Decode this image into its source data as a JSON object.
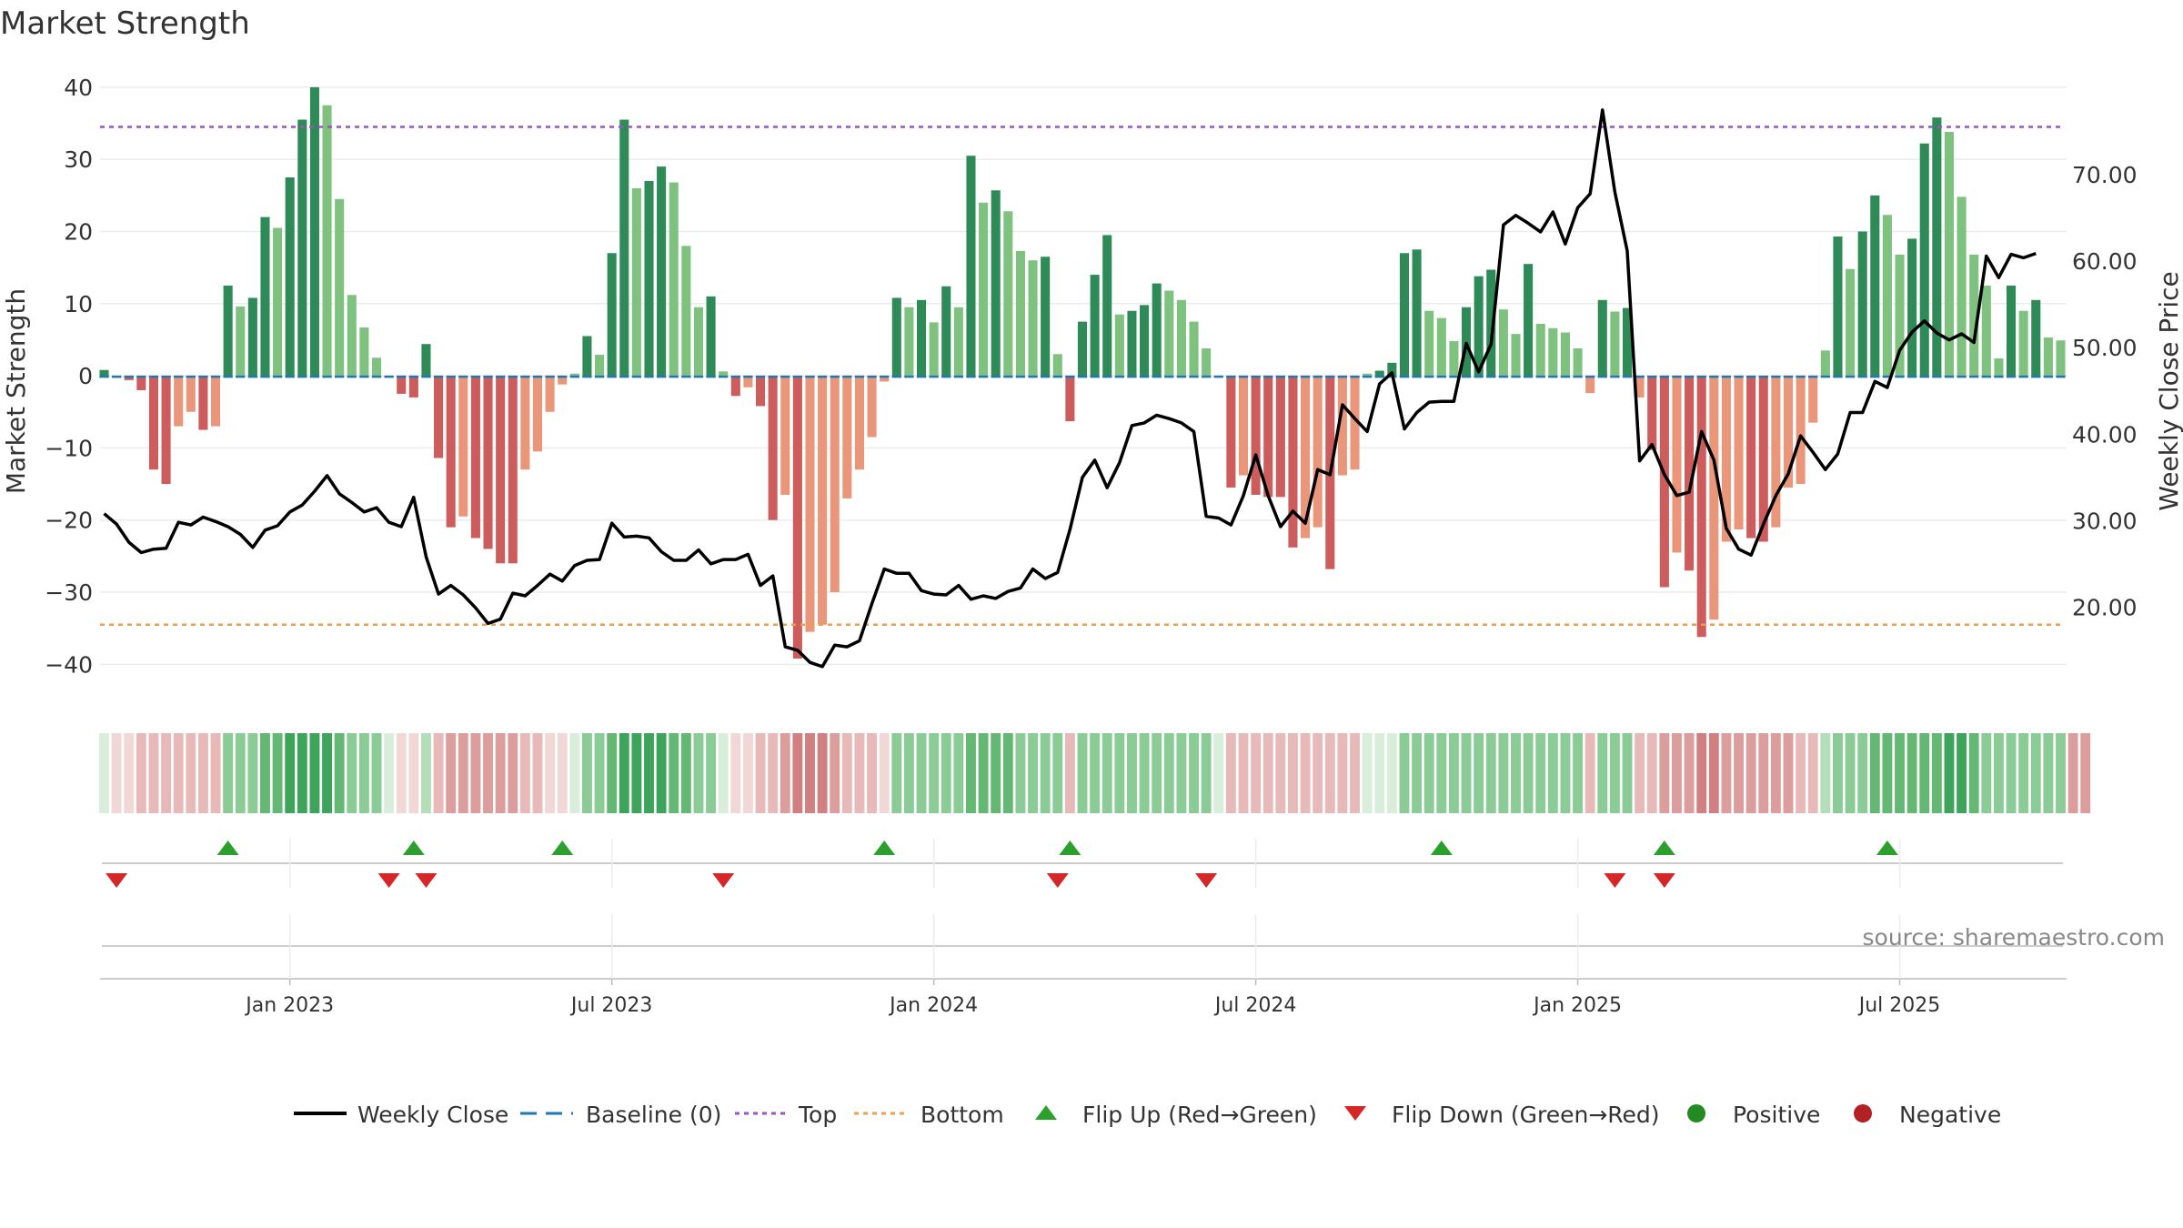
{
  "chart_data": {
    "type": "bar",
    "title": "Market Strength",
    "ylabel": "Market Strength",
    "y2label": "Weekly Close Price",
    "ylim": [
      -45,
      42
    ],
    "y2lim": [
      9.2,
      81.8
    ],
    "y_ticks": [
      40,
      30,
      20,
      10,
      0,
      -10,
      -20,
      -30,
      -40
    ],
    "y_tick_labels": [
      "40",
      "30",
      "20",
      "10",
      "0",
      "−10",
      "−20",
      "−30",
      "−40"
    ],
    "y2_ticks": [
      70,
      60,
      50,
      40,
      30,
      20
    ],
    "y2_tick_labels": [
      "70.00",
      "60.00",
      "50.00",
      "40.00",
      "30.00",
      "20.00"
    ],
    "x_ticks": [
      15,
      41,
      67,
      93,
      119,
      145
    ],
    "x_tick_labels": [
      "Jan 2023",
      "Jul 2023",
      "Jan 2024",
      "Jul 2024",
      "Jan 2025",
      "Jul 2025"
    ],
    "top_line": 34.5,
    "bottom_line": -34.5,
    "baseline": 0,
    "colors": {
      "strong_pos": "#2e8b57",
      "weak_pos": "#7fc17f",
      "strong_neg": "#cd5c5c",
      "weak_neg": "#e9967a",
      "close": "#000000",
      "baseline": "#1f77b4",
      "top": "#9955bb",
      "bottom": "#e8a050",
      "flip_up": "#2ca02c",
      "flip_down": "#d62728",
      "legend_positive": "#228b22",
      "legend_negative": "#b22222"
    },
    "strength": [
      0.8,
      -0.3,
      -0.6,
      -2,
      -13,
      -15,
      -7,
      -5,
      -7.5,
      -7,
      12.5,
      9.6,
      10.8,
      22,
      20.5,
      27.5,
      35.5,
      40,
      37.5,
      24.5,
      11.2,
      6.7,
      2.5,
      0,
      -2.5,
      -3,
      4.4,
      -11.4,
      -21,
      -19.5,
      -22.5,
      -24,
      -26,
      -26,
      -13,
      -10.5,
      -5,
      -1.2,
      0.3,
      5.5,
      2.9,
      17,
      35.5,
      26,
      27,
      29,
      26.8,
      18,
      9.5,
      11,
      0.6,
      -2.8,
      -1.6,
      -4.2,
      -20,
      -16.5,
      -39.2,
      -35.5,
      -34.5,
      -30,
      -17,
      -13,
      -8.5,
      -0.8,
      10.8,
      9.5,
      10.5,
      7.4,
      12.4,
      9.5,
      30.5,
      24,
      25.7,
      22.8,
      17.3,
      16,
      16.5,
      3,
      -6.3,
      7.5,
      14,
      19.5,
      8.5,
      9,
      9.8,
      12.8,
      11.8,
      10.5,
      7.5,
      3.8,
      0,
      -15.5,
      -13.8,
      -16.5,
      -16.8,
      -16.8,
      -23.8,
      -22.5,
      -21,
      -26.8,
      -13.8,
      -13,
      0.3,
      0.7,
      1.8,
      17,
      17.5,
      9,
      8,
      4.8,
      9.5,
      13.8,
      14.7,
      9.2,
      5.8,
      15.5,
      7.2,
      6.6,
      6,
      3.8,
      -2.4,
      10.5,
      8.9,
      9.4,
      -3,
      -10.3,
      -29.3,
      -24.5,
      -27,
      -36.2,
      -33.8,
      -23,
      -21.3,
      -22.5,
      -23,
      -21,
      -15.5,
      -15,
      -6.5,
      3.5,
      19.3,
      14.8,
      20,
      25,
      22.3,
      16.8,
      19,
      32.2,
      35.8,
      33.8,
      24.8,
      16.8,
      12.5,
      2.4,
      12.5,
      9,
      10.5,
      5.3,
      4.9
    ],
    "close": [
      30.8,
      29.6,
      27.5,
      26.3,
      26.7,
      26.8,
      29.8,
      29.5,
      30.4,
      29.9,
      29.3,
      28.4,
      26.9,
      28.9,
      29.4,
      31,
      31.8,
      33.4,
      35.2,
      33.1,
      32.1,
      31,
      31.5,
      29.8,
      29.3,
      32.7,
      25.8,
      21.5,
      22.5,
      21.4,
      19.9,
      18.1,
      18.6,
      21.6,
      21.3,
      22.5,
      23.8,
      23,
      24.8,
      25.4,
      25.5,
      29.7,
      28.1,
      28.2,
      28,
      26.4,
      25.4,
      25.4,
      26.6,
      25,
      25.5,
      25.5,
      26.1,
      22.5,
      23.6,
      15.4,
      15,
      13.6,
      13.1,
      15.6,
      15.4,
      16.1,
      20.4,
      24.4,
      23.9,
      23.9,
      21.9,
      21.5,
      21.4,
      22.5,
      20.9,
      21.3,
      21,
      21.8,
      22.2,
      24.4,
      23.3,
      24,
      29,
      35,
      37,
      33.8,
      36.7,
      41,
      41.3,
      42.2,
      41.8,
      41.3,
      40.3,
      30.5,
      30.3,
      29.5,
      32.9,
      37.6,
      32.9,
      29.3,
      31.1,
      29.7,
      35.9,
      35.3,
      43.4,
      41.8,
      40.3,
      45.8,
      47.1,
      40.6,
      42.5,
      43.7,
      43.8,
      43.8,
      50.5,
      47.2,
      50.4,
      64.2,
      65.3,
      64.4,
      63.4,
      65.7,
      62,
      66.2,
      67.8,
      77.5,
      68,
      61.2,
      36.9,
      38.8,
      35.3,
      32.9,
      33.3,
      40.3,
      37,
      29.1,
      26.7,
      26,
      29.6,
      32.9,
      35.4,
      39.8,
      37.9,
      35.9,
      37.7,
      42.5,
      42.5,
      46.1,
      45.4,
      49.7,
      51.8,
      53.1,
      51.7,
      50.9,
      51.6,
      50.6,
      60.6,
      58.1,
      60.8,
      60.4,
      60.9
    ],
    "strip_levels": [
      1,
      1,
      1,
      2,
      2,
      2,
      2,
      2,
      2,
      2,
      3,
      3,
      3,
      4,
      4,
      5,
      5,
      5,
      5,
      4,
      3,
      3,
      3,
      1,
      1,
      1,
      2,
      2,
      3,
      3,
      3,
      3,
      3,
      3,
      2,
      2,
      1,
      1,
      1,
      3,
      3,
      4,
      5,
      5,
      5,
      5,
      4,
      4,
      3,
      3,
      1,
      1,
      1,
      2,
      2,
      3,
      4,
      4,
      4,
      3,
      2,
      2,
      2,
      1,
      3,
      3,
      3,
      3,
      3,
      3,
      4,
      4,
      4,
      4,
      3,
      3,
      3,
      3,
      2,
      3,
      3,
      3,
      3,
      3,
      3,
      3,
      3,
      3,
      3,
      3,
      1,
      2,
      2,
      2,
      2,
      2,
      2,
      2,
      2,
      2,
      2,
      2,
      1,
      1,
      1,
      3,
      3,
      3,
      3,
      3,
      3,
      3,
      3,
      3,
      3,
      3,
      3,
      3,
      3,
      3,
      2,
      3,
      3,
      3,
      2,
      2,
      3,
      3,
      3,
      4,
      4,
      3,
      3,
      3,
      3,
      3,
      3,
      2,
      2,
      2,
      3,
      3,
      3,
      4,
      4,
      4,
      4,
      4,
      4,
      5,
      5,
      4,
      3,
      3,
      3,
      3,
      3,
      3,
      3,
      3,
      3
    ],
    "strip_signs": [
      1,
      -1,
      -1,
      -1,
      -1,
      -1,
      -1,
      -1,
      -1,
      -1,
      1,
      1,
      1,
      1,
      1,
      1,
      1,
      1,
      1,
      1,
      1,
      1,
      1,
      1,
      -1,
      -1,
      1,
      -1,
      -1,
      -1,
      -1,
      -1,
      -1,
      -1,
      -1,
      -1,
      -1,
      -1,
      1,
      1,
      1,
      1,
      1,
      1,
      1,
      1,
      1,
      1,
      1,
      1,
      1,
      -1,
      -1,
      -1,
      -1,
      -1,
      -1,
      -1,
      -1,
      -1,
      -1,
      -1,
      -1,
      -1,
      1,
      1,
      1,
      1,
      1,
      1,
      1,
      1,
      1,
      1,
      1,
      1,
      1,
      1,
      -1,
      1,
      1,
      1,
      1,
      1,
      1,
      1,
      1,
      1,
      1,
      1,
      1,
      -1,
      -1,
      -1,
      -1,
      -1,
      -1,
      -1,
      -1,
      -1,
      -1,
      -1,
      1,
      1,
      1,
      1,
      1,
      1,
      1,
      1,
      1,
      1,
      1,
      1,
      1,
      1,
      1,
      1,
      1,
      1,
      -1,
      1,
      1,
      1,
      -1,
      -1,
      -1,
      -1,
      -1,
      -1,
      -1,
      -1,
      -1,
      -1,
      -1,
      -1,
      -1,
      -1,
      -1,
      1,
      1,
      1,
      1,
      1,
      1,
      1,
      1,
      1,
      1,
      1,
      1,
      1,
      1,
      1,
      1,
      1,
      1,
      1,
      1
    ],
    "flip_up": [
      10,
      25,
      37,
      63,
      78,
      108,
      126,
      144
    ],
    "flip_down": [
      1,
      23,
      26,
      50,
      77,
      89,
      122,
      126
    ],
    "source": "source: sharemaestro.com",
    "legend": [
      "Weekly Close",
      "Baseline (0)",
      "Top",
      "Bottom",
      "Flip Up (Red→Green)",
      "Flip Down (Green→Red)",
      "Positive",
      "Negative"
    ]
  }
}
